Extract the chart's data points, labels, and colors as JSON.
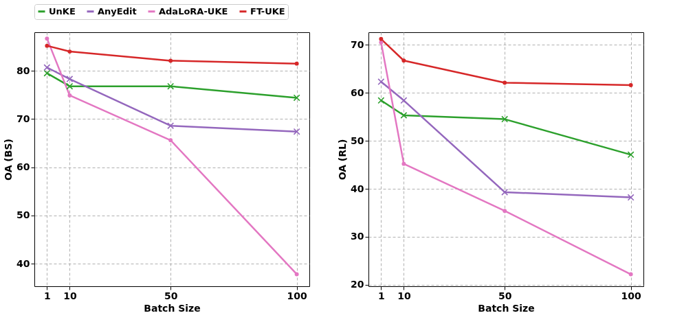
{
  "chart_data": [
    {
      "type": "line",
      "xlabel": "Batch Size",
      "ylabel": "OA (BS)",
      "x": [
        1,
        10,
        50,
        100
      ],
      "xlim": [
        -4,
        105
      ],
      "xticks": [
        1,
        10,
        50,
        100
      ],
      "ylim": [
        35.3,
        88
      ],
      "yticks": [
        40,
        50,
        60,
        70,
        80
      ],
      "grid": true,
      "legend": "top",
      "line_style": "solid",
      "series": [
        {
          "name": "UnKE",
          "color": "#2ca02c",
          "marker": "cross",
          "values": [
            79.5,
            76.8,
            76.8,
            74.4
          ]
        },
        {
          "name": "AnyEdit",
          "color": "#9467bd",
          "marker": "cross",
          "values": [
            80.7,
            78.3,
            68.6,
            67.4
          ]
        },
        {
          "name": "AdaLoRA-UKE",
          "color": "#e377c2",
          "marker": "circle",
          "values": [
            86.7,
            74.9,
            65.6,
            37.8
          ]
        },
        {
          "name": "FT-UKE",
          "color": "#d62728",
          "marker": "circle",
          "values": [
            85.2,
            84.0,
            82.1,
            81.5
          ]
        }
      ]
    },
    {
      "type": "line",
      "xlabel": "Batch Size",
      "ylabel": "OA (RL)",
      "x": [
        1,
        10,
        50,
        100
      ],
      "xlim": [
        -4,
        105
      ],
      "xticks": [
        1,
        10,
        50,
        100
      ],
      "ylim": [
        19.7,
        72.6
      ],
      "yticks": [
        20,
        30,
        40,
        50,
        60,
        70
      ],
      "grid": true,
      "legend": "top",
      "line_style": "solid",
      "series": [
        {
          "name": "UnKE",
          "color": "#2ca02c",
          "marker": "cross",
          "values": [
            58.4,
            55.3,
            54.5,
            47.1
          ]
        },
        {
          "name": "AnyEdit",
          "color": "#9467bd",
          "marker": "cross",
          "values": [
            62.3,
            58.4,
            39.3,
            38.2
          ]
        },
        {
          "name": "AdaLoRA-UKE",
          "color": "#e377c2",
          "marker": "circle",
          "values": [
            70.5,
            45.2,
            35.4,
            22.2
          ]
        },
        {
          "name": "FT-UKE",
          "color": "#d62728",
          "marker": "circle",
          "values": [
            71.2,
            66.7,
            62.1,
            61.6
          ]
        }
      ]
    }
  ]
}
